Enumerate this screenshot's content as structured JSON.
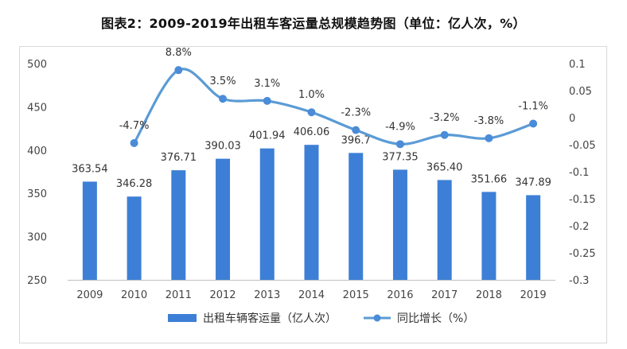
{
  "title": "图表2：2009-2019年出租车客运量总规模趋势图（单位：亿人次，%）",
  "colors": {
    "bar": "#3d7fd6",
    "line": "#5b9bd5",
    "marker": "#4a8cd8",
    "axis_text": "#444444",
    "frame": "#d8d8d8"
  },
  "chart_data": {
    "type": "bar+line",
    "title": "图表2：2009-2019年出租车客运量总规模趋势图（单位：亿人次，%）",
    "categories": [
      "2009",
      "2010",
      "2011",
      "2012",
      "2013",
      "2014",
      "2015",
      "2016",
      "2017",
      "2018",
      "2019"
    ],
    "series": [
      {
        "name": "出租车辆客运量（亿人次）",
        "type": "bar",
        "axis": "left",
        "values": [
          363.54,
          346.28,
          376.71,
          390.03,
          401.94,
          406.06,
          396.7,
          377.35,
          365.4,
          351.66,
          347.89
        ],
        "labels": [
          "363.54",
          "346.28",
          "376.71",
          "390.03",
          "401.94",
          "406.06",
          "396.7",
          "377.35",
          "365.40",
          "351.66",
          "347.89"
        ]
      },
      {
        "name": "同比增长（%）",
        "type": "line",
        "axis": "right",
        "values": [
          null,
          -0.047,
          0.088,
          0.035,
          0.031,
          0.01,
          -0.023,
          -0.049,
          -0.032,
          -0.038,
          -0.011
        ],
        "labels": [
          "",
          "-4.7%",
          "8.8%",
          "3.5%",
          "3.1%",
          "1.0%",
          "-2.3%",
          "-4.9%",
          "-3.2%",
          "-3.8%",
          "-1.1%"
        ]
      }
    ],
    "y_left": {
      "min": 250,
      "max": 500,
      "ticks": [
        "250",
        "300",
        "350",
        "400",
        "450",
        "500"
      ]
    },
    "y_right": {
      "min": -0.3,
      "max": 0.1,
      "ticks": [
        "-0.3",
        "-0.25",
        "-0.2",
        "-0.15",
        "-0.1",
        "-0.05",
        "0",
        "0.05",
        "0.1"
      ]
    },
    "legend": {
      "position": "bottom",
      "items": [
        "出租车辆客运量（亿人次）",
        "同比增长（%）"
      ]
    },
    "grid": false
  }
}
